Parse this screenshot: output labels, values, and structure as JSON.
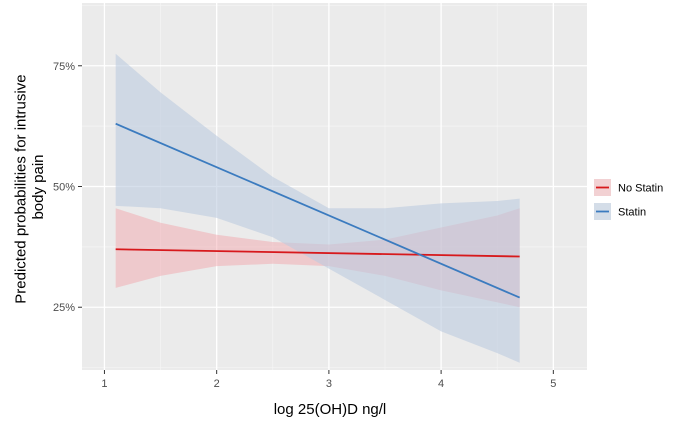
{
  "chart_data": {
    "type": "line",
    "xlabel": "log 25(OH)D ng/l",
    "ylabel_lines": [
      "Predicted probabilities for intrusive",
      "body pain"
    ],
    "xlim": [
      0.8,
      5.3
    ],
    "ylim": [
      0.12,
      0.88
    ],
    "x_ticks": [
      1,
      2,
      3,
      4,
      5
    ],
    "x_tick_labels": [
      "1",
      "2",
      "3",
      "4",
      "5"
    ],
    "y_ticks": [
      0.25,
      0.5,
      0.75
    ],
    "y_tick_labels": [
      "25%",
      "50%",
      "75%"
    ],
    "grid": true,
    "legend_position": "right",
    "series": [
      {
        "name": "No Statin",
        "color": "#d7191c",
        "band_color": "#f2a0a6",
        "x": [
          1.1,
          4.7
        ],
        "y": [
          0.37,
          0.355
        ],
        "band_x": [
          1.1,
          1.5,
          2.0,
          2.5,
          3.0,
          3.5,
          4.0,
          4.5,
          4.7
        ],
        "band_lower": [
          0.29,
          0.315,
          0.335,
          0.34,
          0.335,
          0.315,
          0.285,
          0.26,
          0.25
        ],
        "band_upper": [
          0.455,
          0.425,
          0.4,
          0.385,
          0.38,
          0.39,
          0.415,
          0.44,
          0.455
        ]
      },
      {
        "name": "Statin",
        "color": "#3b7bbf",
        "band_color": "#bccce0",
        "x": [
          1.1,
          4.7
        ],
        "y": [
          0.63,
          0.27
        ],
        "band_x": [
          1.1,
          1.5,
          2.0,
          2.5,
          3.0,
          3.5,
          4.0,
          4.5,
          4.7
        ],
        "band_lower": [
          0.46,
          0.455,
          0.435,
          0.395,
          0.33,
          0.265,
          0.2,
          0.155,
          0.135
        ],
        "band_upper": [
          0.775,
          0.695,
          0.605,
          0.52,
          0.455,
          0.455,
          0.465,
          0.47,
          0.475
        ]
      }
    ]
  },
  "colors": {
    "panel_background": "#ebebeb",
    "grid_major": "#ffffff",
    "grid_minor": "#f5f5f5"
  }
}
